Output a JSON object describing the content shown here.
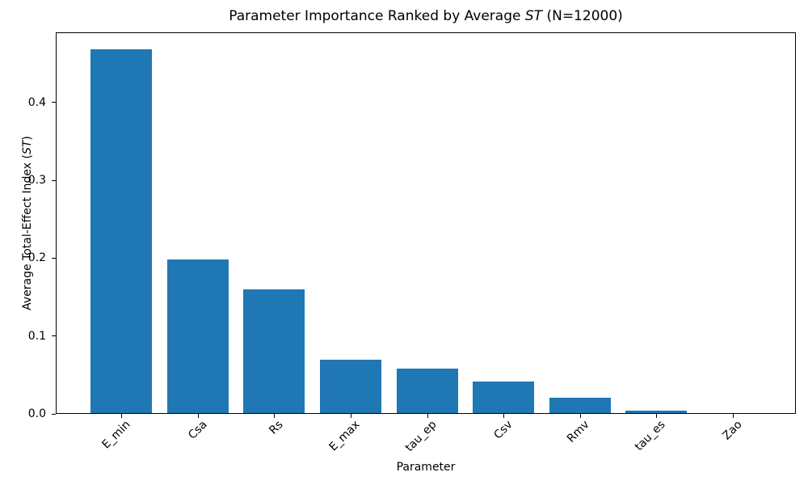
{
  "title": {
    "prefix": "Parameter Importance Ranked by Average ",
    "italic": "ST",
    "suffix": " (N=12000)"
  },
  "ylabel": {
    "prefix": "Average Total-Effect Index (",
    "italic": "ST",
    "suffix": ")"
  },
  "chart_data": {
    "type": "bar",
    "title": "Parameter Importance Ranked by Average ST (N=12000)",
    "xlabel": "Parameter",
    "ylabel": "Average Total-Effect Index (ST)",
    "categories": [
      "E_min",
      "Csa",
      "Rs",
      "E_max",
      "tau_ep",
      "Csv",
      "Rmv",
      "tau_es",
      "Zao"
    ],
    "values": [
      0.467,
      0.197,
      0.159,
      0.068,
      0.057,
      0.04,
      0.02,
      0.003,
      0.0
    ],
    "ylim": [
      0,
      0.49
    ],
    "yticks": [
      0.0,
      0.1,
      0.2,
      0.3,
      0.4
    ],
    "ytick_labels": [
      "0.0",
      "0.1",
      "0.2",
      "0.3",
      "0.4"
    ],
    "x_tick_rotation": 45,
    "bar_color": "#1f77b4",
    "grid": false,
    "legend": null
  }
}
